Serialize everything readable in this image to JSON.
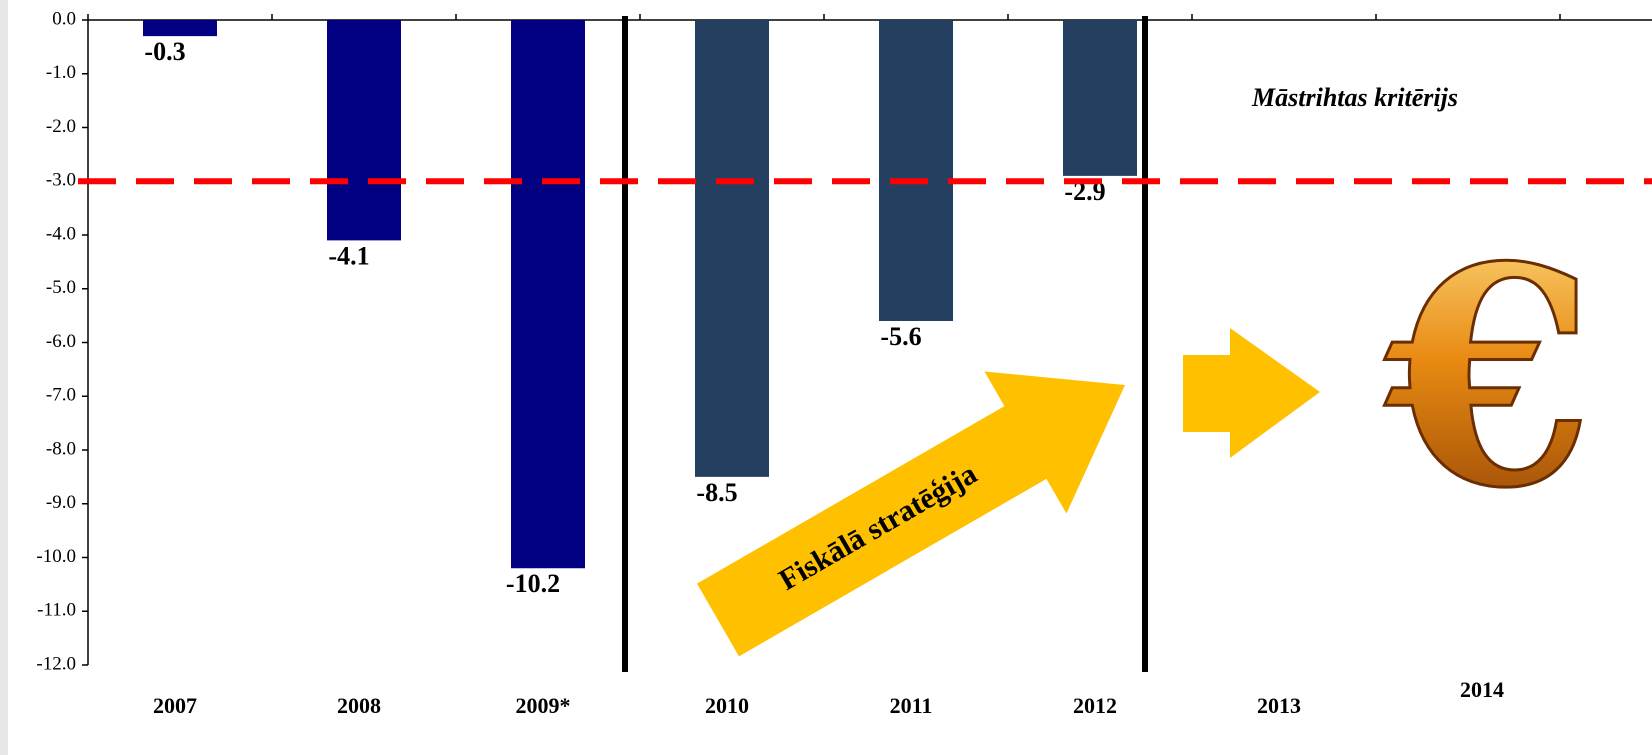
{
  "chart_data": {
    "type": "bar",
    "categories": [
      "2007",
      "2008",
      "2009*",
      "2010",
      "2011",
      "2012",
      "2013",
      "2014"
    ],
    "values": [
      -0.3,
      -4.1,
      -10.2,
      -8.5,
      -5.6,
      -2.9,
      null,
      null
    ],
    "colors": [
      "#000080",
      "#000080",
      "#000080",
      "#243f60",
      "#243f60",
      "#243f60",
      "#243f60",
      "#243f60"
    ],
    "ylim": [
      -12,
      0
    ],
    "yticks": [
      {
        "value": 0,
        "label": "0.0"
      },
      {
        "value": -1,
        "label": "-1.0"
      },
      {
        "value": -2,
        "label": "-2.0"
      },
      {
        "value": -3,
        "label": "-3.0"
      },
      {
        "value": -4,
        "label": "-4.0"
      },
      {
        "value": -5,
        "label": "-5.0"
      },
      {
        "value": -6,
        "label": "-6.0"
      },
      {
        "value": -7,
        "label": "-7.0"
      },
      {
        "value": -8,
        "label": "-8.0"
      },
      {
        "value": -9,
        "label": "-9.0"
      },
      {
        "value": -10,
        "label": "-10.0"
      },
      {
        "value": -11,
        "label": "-11.0"
      },
      {
        "value": -12,
        "label": "-12.0"
      }
    ],
    "reference_line": {
      "value": -3,
      "label": "Māstrihtas kritērijs",
      "color": "#ff0000"
    },
    "annotations": [
      "Fiskālā stratēģija"
    ]
  }
}
